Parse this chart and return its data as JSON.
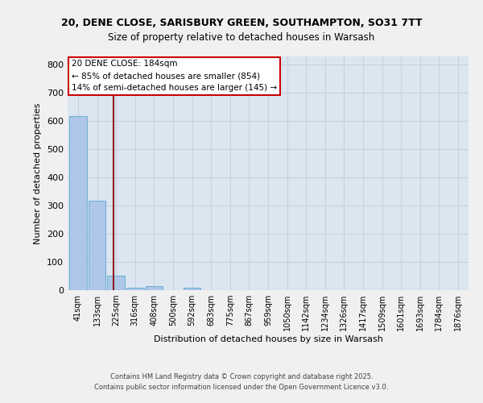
{
  "title1": "20, DENE CLOSE, SARISBURY GREEN, SOUTHAMPTON, SO31 7TT",
  "title2": "Size of property relative to detached houses in Warsash",
  "xlabel": "Distribution of detached houses by size in Warsash",
  "ylabel": "Number of detached properties",
  "bin_labels": [
    "41sqm",
    "133sqm",
    "225sqm",
    "316sqm",
    "408sqm",
    "500sqm",
    "592sqm",
    "683sqm",
    "775sqm",
    "867sqm",
    "959sqm",
    "1050sqm",
    "1142sqm",
    "1234sqm",
    "1326sqm",
    "1417sqm",
    "1509sqm",
    "1601sqm",
    "1693sqm",
    "1784sqm",
    "1876sqm"
  ],
  "bar_values": [
    617,
    318,
    52,
    10,
    13,
    0,
    8,
    0,
    0,
    0,
    0,
    0,
    0,
    0,
    0,
    0,
    0,
    0,
    0,
    0,
    0
  ],
  "bar_color": "#aec6e8",
  "bar_edgecolor": "#6aaed6",
  "vline_x": 1.85,
  "vline_color": "#8b1a1a",
  "annotation_text": "20 DENE CLOSE: 184sqm\n← 85% of detached houses are smaller (854)\n14% of semi-detached houses are larger (145) →",
  "annotation_box_color": "#ffffff",
  "annotation_box_edgecolor": "#cc0000",
  "ylim": [
    0,
    830
  ],
  "yticks": [
    0,
    100,
    200,
    300,
    400,
    500,
    600,
    700,
    800
  ],
  "grid_color": "#c8d0dc",
  "background_color": "#dce6f0",
  "fig_background_color": "#f0f0f0",
  "footer1": "Contains HM Land Registry data © Crown copyright and database right 2025.",
  "footer2": "Contains public sector information licensed under the Open Government Licence v3.0."
}
